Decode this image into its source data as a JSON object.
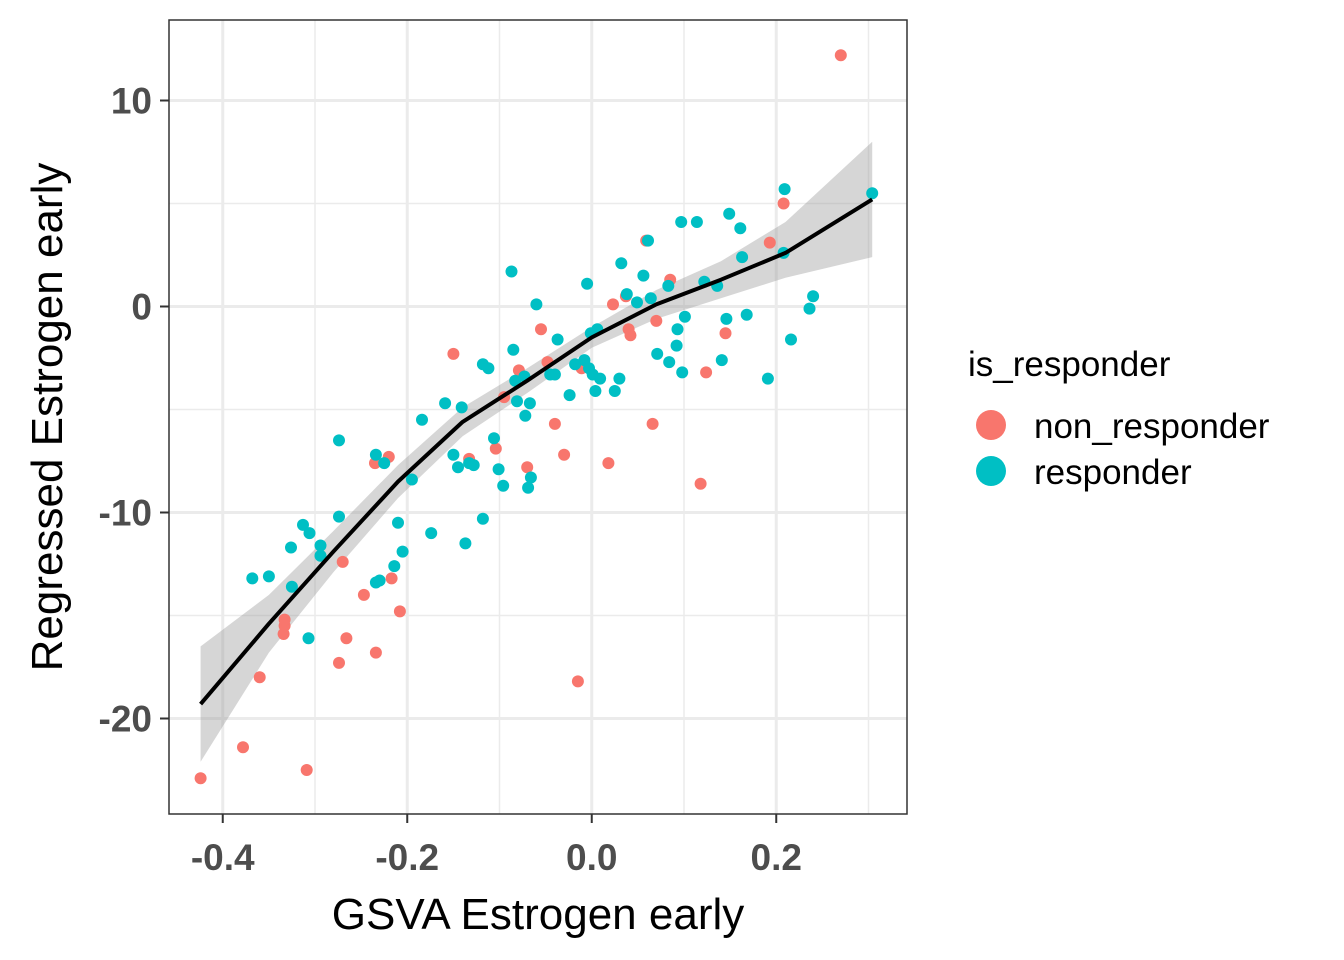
{
  "chart_data": {
    "type": "scatter",
    "title": "",
    "xlabel": "GSVA Estrogen early",
    "ylabel": "Regressed Estrogen early",
    "xlim": [
      -0.45,
      0.35
    ],
    "ylim": [
      -24.5,
      14
    ],
    "x_ticks": [
      -0.4,
      -0.2,
      0.0,
      0.2
    ],
    "x_tick_labels": [
      "-0.4",
      "-0.2",
      "0.0",
      "0.2"
    ],
    "y_ticks": [
      -20,
      -10,
      0,
      10
    ],
    "y_tick_labels": [
      "-20",
      "-10",
      "0",
      "10"
    ],
    "grid": true,
    "legend": {
      "title": "is_responder",
      "position": "right",
      "entries": [
        {
          "label": "non_responder",
          "color": "#F8766D"
        },
        {
          "label": "responder",
          "color": "#00BFC4"
        }
      ]
    },
    "series": [
      {
        "name": "non_responder",
        "color": "#F8766D",
        "points": [
          [
            -0.424,
            -22.9
          ],
          [
            -0.378,
            -21.4
          ],
          [
            -0.309,
            -22.5
          ],
          [
            -0.36,
            -18.0
          ],
          [
            -0.334,
            -15.9
          ],
          [
            -0.333,
            -15.5
          ],
          [
            -0.333,
            -15.2
          ],
          [
            -0.274,
            -17.3
          ],
          [
            -0.266,
            -16.1
          ],
          [
            -0.27,
            -12.4
          ],
          [
            -0.247,
            -14.0
          ],
          [
            -0.234,
            -16.8
          ],
          [
            -0.235,
            -7.6
          ],
          [
            -0.22,
            -7.3
          ],
          [
            -0.217,
            -13.2
          ],
          [
            -0.208,
            -14.8
          ],
          [
            -0.133,
            -7.4
          ],
          [
            -0.15,
            -2.3
          ],
          [
            -0.104,
            -6.9
          ],
          [
            -0.095,
            -4.4
          ],
          [
            -0.079,
            -3.1
          ],
          [
            -0.07,
            -7.8
          ],
          [
            -0.055,
            -1.1
          ],
          [
            -0.048,
            -2.7
          ],
          [
            -0.04,
            -5.7
          ],
          [
            -0.03,
            -7.2
          ],
          [
            -0.015,
            -18.2
          ],
          [
            -0.011,
            -3.0
          ],
          [
            0.018,
            -7.6
          ],
          [
            0.023,
            0.1
          ],
          [
            0.04,
            -1.1
          ],
          [
            0.042,
            -1.4
          ],
          [
            0.059,
            3.2
          ],
          [
            0.066,
            -5.7
          ],
          [
            0.07,
            -0.7
          ],
          [
            0.085,
            1.3
          ],
          [
            0.037,
            0.5
          ],
          [
            0.118,
            -8.6
          ],
          [
            0.124,
            -3.2
          ],
          [
            0.145,
            -1.3
          ],
          [
            0.193,
            3.1
          ],
          [
            0.208,
            5.0
          ],
          [
            0.27,
            12.2
          ]
        ]
      },
      {
        "name": "responder",
        "color": "#00BFC4",
        "points": [
          [
            -0.368,
            -13.2
          ],
          [
            -0.35,
            -13.1
          ],
          [
            -0.325,
            -13.6
          ],
          [
            -0.326,
            -11.7
          ],
          [
            -0.313,
            -10.6
          ],
          [
            -0.306,
            -11.0
          ],
          [
            -0.294,
            -11.6
          ],
          [
            -0.294,
            -12.1
          ],
          [
            -0.307,
            -16.1
          ],
          [
            -0.274,
            -6.5
          ],
          [
            -0.274,
            -10.2
          ],
          [
            -0.234,
            -13.4
          ],
          [
            -0.23,
            -13.3
          ],
          [
            -0.234,
            -7.2
          ],
          [
            -0.225,
            -7.6
          ],
          [
            -0.214,
            -12.6
          ],
          [
            -0.21,
            -10.5
          ],
          [
            -0.205,
            -11.9
          ],
          [
            -0.195,
            -8.4
          ],
          [
            -0.184,
            -5.5
          ],
          [
            -0.174,
            -11.0
          ],
          [
            -0.159,
            -4.7
          ],
          [
            -0.15,
            -7.2
          ],
          [
            -0.145,
            -7.8
          ],
          [
            -0.141,
            -4.9
          ],
          [
            -0.137,
            -11.5
          ],
          [
            -0.133,
            -7.6
          ],
          [
            -0.128,
            -7.7
          ],
          [
            -0.118,
            -10.3
          ],
          [
            -0.118,
            -2.8
          ],
          [
            -0.112,
            -3.0
          ],
          [
            -0.106,
            -6.4
          ],
          [
            -0.101,
            -7.9
          ],
          [
            -0.096,
            -8.7
          ],
          [
            -0.087,
            1.7
          ],
          [
            -0.085,
            -2.1
          ],
          [
            -0.083,
            -3.6
          ],
          [
            -0.081,
            -4.6
          ],
          [
            -0.073,
            -3.4
          ],
          [
            -0.072,
            -5.3
          ],
          [
            -0.067,
            -4.7
          ],
          [
            -0.066,
            -8.3
          ],
          [
            -0.069,
            -8.8
          ],
          [
            -0.06,
            0.1
          ],
          [
            -0.045,
            -3.3
          ],
          [
            -0.04,
            -3.3
          ],
          [
            -0.037,
            -1.6
          ],
          [
            -0.024,
            -4.3
          ],
          [
            -0.018,
            -2.8
          ],
          [
            -0.008,
            -2.6
          ],
          [
            -0.005,
            1.1
          ],
          [
            -0.003,
            -3.0
          ],
          [
            -0.001,
            -1.3
          ],
          [
            0.001,
            -3.3
          ],
          [
            0.004,
            -4.1
          ],
          [
            0.006,
            -1.1
          ],
          [
            0.009,
            -3.5
          ],
          [
            0.025,
            -4.1
          ],
          [
            0.03,
            -3.5
          ],
          [
            0.032,
            2.1
          ],
          [
            0.038,
            0.6
          ],
          [
            0.049,
            0.2
          ],
          [
            0.056,
            1.5
          ],
          [
            0.061,
            3.2
          ],
          [
            0.064,
            0.4
          ],
          [
            0.071,
            -2.3
          ],
          [
            0.083,
            1.0
          ],
          [
            0.084,
            -2.7
          ],
          [
            0.092,
            -1.9
          ],
          [
            0.093,
            -1.1
          ],
          [
            0.097,
            4.1
          ],
          [
            0.098,
            -3.2
          ],
          [
            0.101,
            -0.5
          ],
          [
            0.114,
            4.1
          ],
          [
            0.122,
            1.2
          ],
          [
            0.136,
            1.0
          ],
          [
            0.141,
            -2.6
          ],
          [
            0.146,
            -0.6
          ],
          [
            0.149,
            4.5
          ],
          [
            0.161,
            3.8
          ],
          [
            0.163,
            2.4
          ],
          [
            0.168,
            -0.4
          ],
          [
            0.191,
            -3.5
          ],
          [
            0.209,
            5.7
          ],
          [
            0.208,
            2.6
          ],
          [
            0.216,
            -1.6
          ],
          [
            0.236,
            -0.1
          ],
          [
            0.24,
            0.5
          ],
          [
            0.304,
            5.5
          ]
        ]
      }
    ],
    "smooth": {
      "color": "#000000",
      "band_color": "#999999",
      "x": [
        -0.424,
        -0.35,
        -0.28,
        -0.21,
        -0.14,
        -0.07,
        0.0,
        0.07,
        0.14,
        0.21,
        0.304
      ],
      "y": [
        -19.3,
        -15.4,
        -11.9,
        -8.5,
        -5.6,
        -3.6,
        -1.5,
        0.1,
        1.3,
        2.6,
        5.2
      ],
      "lower": [
        -22.1,
        -16.8,
        -12.9,
        -9.3,
        -6.3,
        -4.2,
        -2.0,
        -0.6,
        0.4,
        1.4,
        2.4
      ],
      "upper": [
        -16.5,
        -14.0,
        -10.9,
        -7.7,
        -4.9,
        -3.0,
        -1.0,
        0.8,
        2.2,
        4.1,
        8.0
      ]
    }
  }
}
